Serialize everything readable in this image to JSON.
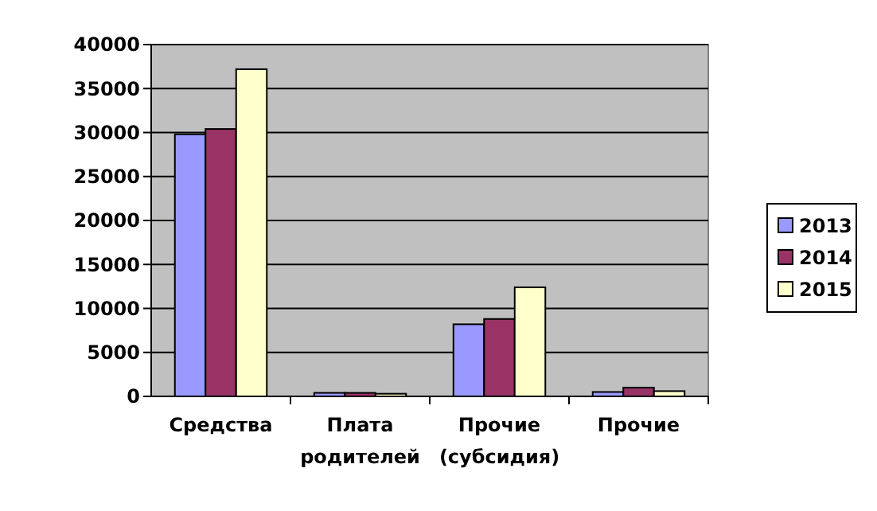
{
  "chart_data": {
    "type": "bar",
    "categories": [
      "Средства",
      "Плата\nродителей",
      "Прочие\n(субсидия)",
      "Прочие"
    ],
    "series": [
      {
        "name": "2013",
        "color": "#9999ff",
        "values": [
          29800,
          400,
          8200,
          500
        ]
      },
      {
        "name": "2014",
        "color": "#993366",
        "values": [
          30400,
          400,
          8800,
          1000
        ]
      },
      {
        "name": "2015",
        "color": "#ffffcc",
        "values": [
          37200,
          300,
          12400,
          600
        ]
      }
    ],
    "ylim": [
      0,
      40000
    ],
    "yticks": [
      0,
      5000,
      10000,
      15000,
      20000,
      25000,
      30000,
      35000,
      40000
    ],
    "grid": "y",
    "legend": "right"
  }
}
